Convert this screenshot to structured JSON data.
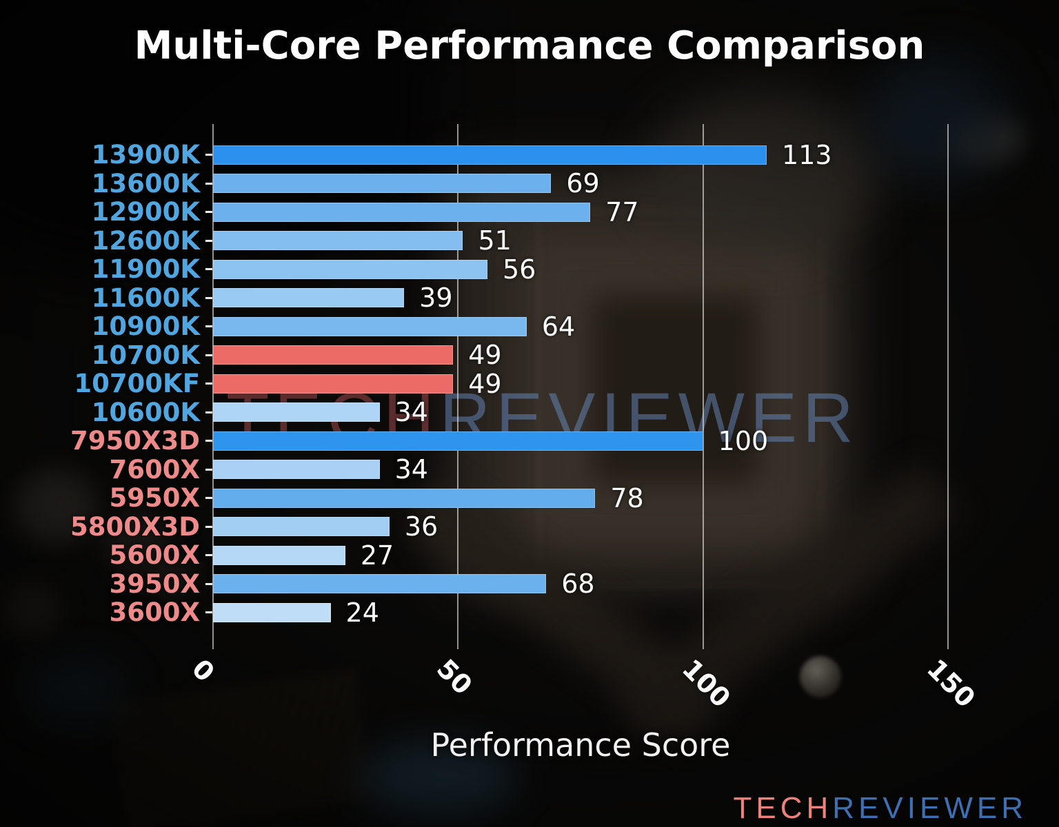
{
  "watermark": {
    "tech": "TECH",
    "reviewer": "REVIEWER"
  },
  "logo": {
    "tech": "TECH",
    "reviewer": "REVIEWER"
  },
  "chart_data": {
    "type": "bar",
    "orientation": "horizontal",
    "title": "Multi-Core Performance Comparison",
    "xlabel": "Performance Score",
    "xlim": [
      0,
      150
    ],
    "xticks": [
      0,
      50,
      100,
      150
    ],
    "grid": true,
    "legend_position": "none",
    "value_labels": "end-of-bar",
    "label_colors": {
      "intel": "#4fa6e0",
      "amd": "#ee8a8a"
    },
    "bars": [
      {
        "label": "13900K",
        "value": 113,
        "color": "#2a92ee",
        "label_color": "#4fa6e0"
      },
      {
        "label": "13600K",
        "value": 69,
        "color": "#6cb1ee",
        "label_color": "#4fa6e0"
      },
      {
        "label": "12900K",
        "value": 77,
        "color": "#6cb1ee",
        "label_color": "#4fa6e0"
      },
      {
        "label": "12600K",
        "value": 51,
        "color": "#84bef0",
        "label_color": "#4fa6e0"
      },
      {
        "label": "11900K",
        "value": 56,
        "color": "#8cc3f1",
        "label_color": "#4fa6e0"
      },
      {
        "label": "11600K",
        "value": 39,
        "color": "#98caf3",
        "label_color": "#4fa6e0"
      },
      {
        "label": "10900K",
        "value": 64,
        "color": "#79b7ef",
        "label_color": "#4fa6e0"
      },
      {
        "label": "10700K",
        "value": 49,
        "color": "#ed6b66",
        "label_color": "#4fa6e0"
      },
      {
        "label": "10700KF",
        "value": 49,
        "color": "#ed6b66",
        "label_color": "#4fa6e0"
      },
      {
        "label": "10600K",
        "value": 34,
        "color": "#aed5f6",
        "label_color": "#4fa6e0"
      },
      {
        "label": "7950X3D",
        "value": 100,
        "color": "#2e95ef",
        "label_color": "#ee8a8a"
      },
      {
        "label": "7600X",
        "value": 34,
        "color": "#a8d1f5",
        "label_color": "#ee8a8a"
      },
      {
        "label": "5950X",
        "value": 78,
        "color": "#64adec",
        "label_color": "#ee8a8a"
      },
      {
        "label": "5800X3D",
        "value": 36,
        "color": "#a2cef4",
        "label_color": "#ee8a8a"
      },
      {
        "label": "5600X",
        "value": 27,
        "color": "#b5d8f6",
        "label_color": "#ee8a8a"
      },
      {
        "label": "3950X",
        "value": 68,
        "color": "#6ab1ee",
        "label_color": "#ee8a8a"
      },
      {
        "label": "3600X",
        "value": 24,
        "color": "#c0ddf8",
        "label_color": "#ee8a8a"
      }
    ]
  }
}
